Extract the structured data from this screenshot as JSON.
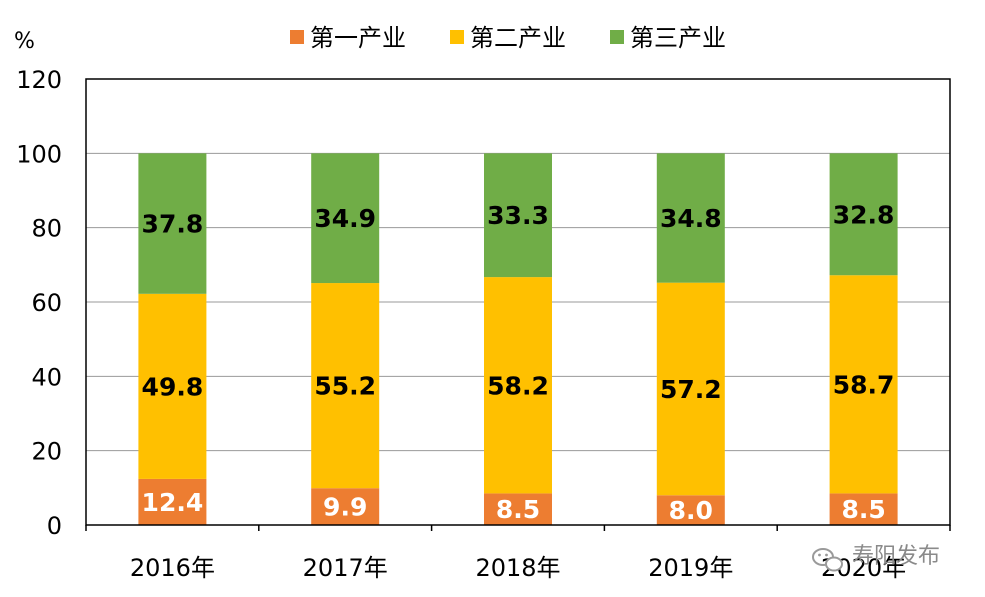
{
  "chart_data": {
    "type": "bar",
    "stacked": true,
    "unit": "%",
    "categories": [
      "2016年",
      "2017年",
      "2018年",
      "2019年",
      "2020年"
    ],
    "series": [
      {
        "name": "第一产业",
        "color": "#ED7D31",
        "label_color": "#ffffff",
        "values": [
          12.4,
          9.9,
          8.5,
          8.0,
          8.5
        ],
        "labels": [
          "12.4",
          "9.9",
          "8.5",
          "8.0",
          "8.5"
        ]
      },
      {
        "name": "第二产业",
        "color": "#FFC000",
        "label_color": "#000000",
        "values": [
          49.8,
          55.2,
          58.2,
          57.2,
          58.7
        ],
        "labels": [
          "49.8",
          "55.2",
          "58.2",
          "57.2",
          "58.7"
        ]
      },
      {
        "name": "第三产业",
        "color": "#70AD47",
        "label_color": "#000000",
        "values": [
          37.8,
          34.9,
          33.3,
          34.8,
          32.8
        ],
        "labels": [
          "37.8",
          "34.9",
          "33.3",
          "34.8",
          "32.8"
        ]
      }
    ],
    "ylim": [
      0,
      120
    ],
    "yticks": [
      "0",
      "20",
      "40",
      "60",
      "80",
      "100",
      "120"
    ],
    "grid": true,
    "legend_position": "top"
  },
  "watermark": {
    "text": "寿阳发布",
    "icon": "wechat-icon"
  }
}
